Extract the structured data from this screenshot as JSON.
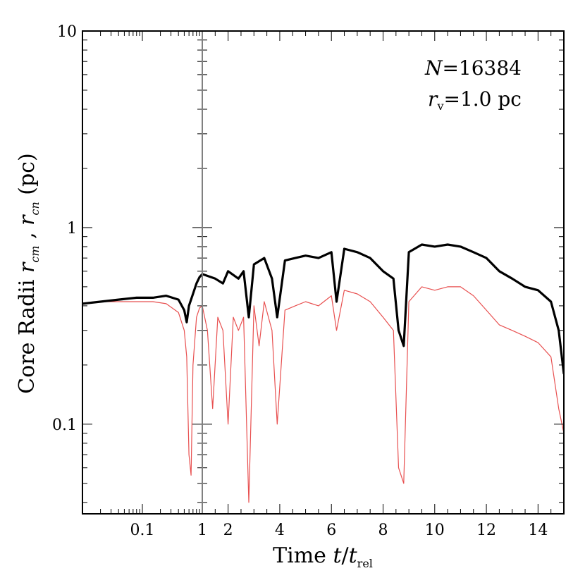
{
  "chart_data": {
    "type": "line",
    "title": "",
    "ylabel": {
      "prefix": "Core Radii ",
      "var1": "r",
      "sub1": "cm",
      "mid": " , ",
      "var2": "r",
      "sub2": "cn",
      "suffix": " (pc)"
    },
    "xlabel": {
      "prefix": "Time ",
      "var": "t",
      "slash": "/",
      "var2": "t",
      "sub": "rel"
    },
    "yscale": "log",
    "ylim": [
      0.035,
      10
    ],
    "y_ticks": [
      {
        "value": 0.1,
        "label": "0.1"
      },
      {
        "value": 1,
        "label": "1"
      },
      {
        "value": 10,
        "label": "10"
      }
    ],
    "x_left_panel": {
      "scale": "log",
      "xlim": [
        0.01,
        1
      ],
      "ticks": [
        {
          "value": 0.1,
          "label": "0.1"
        },
        {
          "value": 1,
          "label": "1"
        }
      ]
    },
    "x_right_panel": {
      "scale": "linear",
      "xlim": [
        1,
        15
      ],
      "ticks": [
        {
          "value": 2,
          "label": "2"
        },
        {
          "value": 4,
          "label": "4"
        },
        {
          "value": 6,
          "label": "6"
        },
        {
          "value": 8,
          "label": "8"
        },
        {
          "value": 10,
          "label": "10"
        },
        {
          "value": 12,
          "label": "12"
        },
        {
          "value": 14,
          "label": "14"
        }
      ]
    },
    "annotations": {
      "n_label": {
        "var": "N",
        "eq": "=",
        "value": "16384"
      },
      "rv_label": {
        "var": "r",
        "sub": "v",
        "eq": "=",
        "value": "1.0 pc"
      }
    },
    "series": [
      {
        "name": "r_cm",
        "color": "#000000",
        "points": [
          [
            0.01,
            0.41
          ],
          [
            0.02,
            0.42
          ],
          [
            0.04,
            0.43
          ],
          [
            0.08,
            0.44
          ],
          [
            0.15,
            0.44
          ],
          [
            0.25,
            0.45
          ],
          [
            0.4,
            0.43
          ],
          [
            0.5,
            0.38
          ],
          [
            0.55,
            0.33
          ],
          [
            0.6,
            0.4
          ],
          [
            0.7,
            0.46
          ],
          [
            0.8,
            0.52
          ],
          [
            0.9,
            0.56
          ],
          [
            1.0,
            0.58
          ],
          [
            1.5,
            0.55
          ],
          [
            1.8,
            0.52
          ],
          [
            2.0,
            0.6
          ],
          [
            2.4,
            0.55
          ],
          [
            2.6,
            0.6
          ],
          [
            2.8,
            0.35
          ],
          [
            3.0,
            0.65
          ],
          [
            3.4,
            0.7
          ],
          [
            3.7,
            0.55
          ],
          [
            3.9,
            0.35
          ],
          [
            4.2,
            0.68
          ],
          [
            4.6,
            0.7
          ],
          [
            5.0,
            0.72
          ],
          [
            5.5,
            0.7
          ],
          [
            6.0,
            0.75
          ],
          [
            6.2,
            0.42
          ],
          [
            6.5,
            0.78
          ],
          [
            7.0,
            0.75
          ],
          [
            7.5,
            0.7
          ],
          [
            8.0,
            0.6
          ],
          [
            8.4,
            0.55
          ],
          [
            8.6,
            0.3
          ],
          [
            8.8,
            0.25
          ],
          [
            9.0,
            0.75
          ],
          [
            9.5,
            0.82
          ],
          [
            10.0,
            0.8
          ],
          [
            10.5,
            0.82
          ],
          [
            11.0,
            0.8
          ],
          [
            11.5,
            0.75
          ],
          [
            12.0,
            0.7
          ],
          [
            12.5,
            0.6
          ],
          [
            13.0,
            0.55
          ],
          [
            13.5,
            0.5
          ],
          [
            14.0,
            0.48
          ],
          [
            14.5,
            0.42
          ],
          [
            14.8,
            0.3
          ],
          [
            15.0,
            0.18
          ]
        ]
      },
      {
        "name": "r_cn",
        "color": "#e85050",
        "points": [
          [
            0.01,
            0.41
          ],
          [
            0.02,
            0.42
          ],
          [
            0.04,
            0.42
          ],
          [
            0.08,
            0.42
          ],
          [
            0.15,
            0.42
          ],
          [
            0.25,
            0.41
          ],
          [
            0.4,
            0.37
          ],
          [
            0.5,
            0.3
          ],
          [
            0.55,
            0.22
          ],
          [
            0.6,
            0.07
          ],
          [
            0.65,
            0.055
          ],
          [
            0.7,
            0.2
          ],
          [
            0.8,
            0.35
          ],
          [
            0.9,
            0.39
          ],
          [
            1.0,
            0.4
          ],
          [
            1.2,
            0.3
          ],
          [
            1.4,
            0.12
          ],
          [
            1.6,
            0.35
          ],
          [
            1.8,
            0.3
          ],
          [
            2.0,
            0.1
          ],
          [
            2.2,
            0.35
          ],
          [
            2.4,
            0.3
          ],
          [
            2.6,
            0.35
          ],
          [
            2.8,
            0.04
          ],
          [
            3.0,
            0.4
          ],
          [
            3.2,
            0.25
          ],
          [
            3.4,
            0.42
          ],
          [
            3.7,
            0.3
          ],
          [
            3.9,
            0.1
          ],
          [
            4.2,
            0.38
          ],
          [
            4.6,
            0.4
          ],
          [
            5.0,
            0.42
          ],
          [
            5.5,
            0.4
          ],
          [
            6.0,
            0.45
          ],
          [
            6.2,
            0.3
          ],
          [
            6.5,
            0.48
          ],
          [
            7.0,
            0.46
          ],
          [
            7.5,
            0.42
          ],
          [
            8.0,
            0.35
          ],
          [
            8.4,
            0.3
          ],
          [
            8.6,
            0.06
          ],
          [
            8.8,
            0.05
          ],
          [
            9.0,
            0.42
          ],
          [
            9.5,
            0.5
          ],
          [
            10.0,
            0.48
          ],
          [
            10.5,
            0.5
          ],
          [
            11.0,
            0.5
          ],
          [
            11.5,
            0.45
          ],
          [
            12.0,
            0.38
          ],
          [
            12.5,
            0.32
          ],
          [
            13.0,
            0.3
          ],
          [
            13.5,
            0.28
          ],
          [
            14.0,
            0.26
          ],
          [
            14.5,
            0.22
          ],
          [
            14.8,
            0.12
          ],
          [
            15.0,
            0.09
          ]
        ]
      }
    ]
  }
}
